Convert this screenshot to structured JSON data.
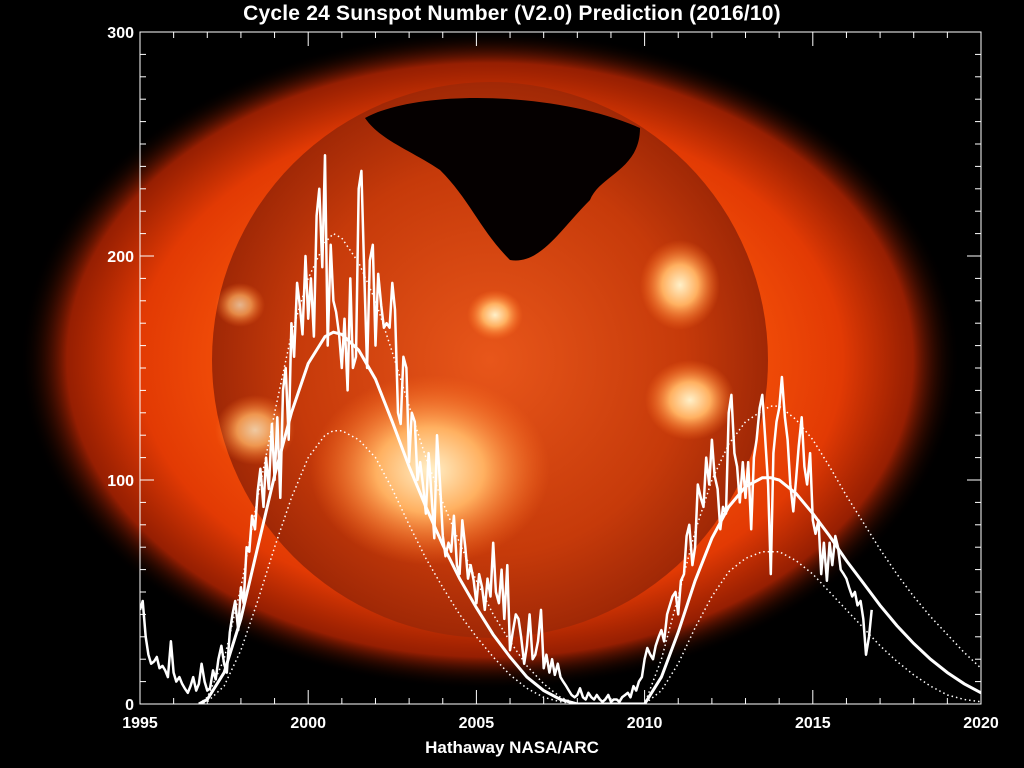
{
  "chart_data": {
    "type": "line",
    "title": "Cycle 24 Sunspot Number (V2.0) Prediction (2016/10)",
    "credit": "Hathaway  NASA/ARC",
    "background_image": "sun-x-ray-corona",
    "xlim": [
      1995,
      2020
    ],
    "ylim": [
      0,
      300
    ],
    "x_ticks": [
      1995,
      2000,
      2005,
      2010,
      2015,
      2020
    ],
    "y_ticks": [
      0,
      100,
      200,
      300
    ],
    "grid": false,
    "line_color": "#ffffff",
    "monthly": {
      "x": [
        1995.0,
        1995.08,
        1995.17,
        1995.25,
        1995.33,
        1995.42,
        1995.5,
        1995.58,
        1995.67,
        1995.75,
        1995.83,
        1995.92,
        1996.0,
        1996.08,
        1996.17,
        1996.25,
        1996.33,
        1996.42,
        1996.5,
        1996.58,
        1996.67,
        1996.75,
        1996.83,
        1996.92,
        1997.0,
        1997.08,
        1997.17,
        1997.25,
        1997.33,
        1997.42,
        1997.5,
        1997.58,
        1997.67,
        1997.75,
        1997.83,
        1997.92,
        1998.0,
        1998.08,
        1998.17,
        1998.25,
        1998.33,
        1998.42,
        1998.5,
        1998.58,
        1998.67,
        1998.75,
        1998.83,
        1998.92,
        1999.0,
        1999.08,
        1999.17,
        1999.25,
        1999.33,
        1999.42,
        1999.5,
        1999.58,
        1999.67,
        1999.75,
        1999.83,
        1999.92,
        2000.0,
        2000.08,
        2000.17,
        2000.25,
        2000.33,
        2000.42,
        2000.5,
        2000.58,
        2000.67,
        2000.75,
        2000.83,
        2000.92,
        2001.0,
        2001.08,
        2001.17,
        2001.25,
        2001.33,
        2001.42,
        2001.5,
        2001.58,
        2001.67,
        2001.75,
        2001.83,
        2001.92,
        2002.0,
        2002.08,
        2002.17,
        2002.25,
        2002.33,
        2002.42,
        2002.5,
        2002.58,
        2002.67,
        2002.75,
        2002.83,
        2002.92,
        2003.0,
        2003.08,
        2003.17,
        2003.25,
        2003.33,
        2003.42,
        2003.5,
        2003.58,
        2003.67,
        2003.75,
        2003.83,
        2003.92,
        2004.0,
        2004.08,
        2004.17,
        2004.25,
        2004.33,
        2004.42,
        2004.5,
        2004.58,
        2004.67,
        2004.75,
        2004.83,
        2004.92,
        2005.0,
        2005.08,
        2005.17,
        2005.25,
        2005.33,
        2005.42,
        2005.5,
        2005.58,
        2005.67,
        2005.75,
        2005.83,
        2005.92,
        2006.0,
        2006.08,
        2006.17,
        2006.25,
        2006.33,
        2006.42,
        2006.5,
        2006.58,
        2006.67,
        2006.75,
        2006.83,
        2006.92,
        2007.0,
        2007.08,
        2007.17,
        2007.25,
        2007.33,
        2007.42,
        2007.5,
        2007.58,
        2007.67,
        2007.75,
        2007.83,
        2007.92,
        2008.0,
        2008.08,
        2008.17,
        2008.25,
        2008.33,
        2008.42,
        2008.5,
        2008.58,
        2008.67,
        2008.75,
        2008.83,
        2008.92,
        2009.0,
        2009.08,
        2009.17,
        2009.25,
        2009.33,
        2009.42,
        2009.5,
        2009.58,
        2009.67,
        2009.75,
        2009.83,
        2009.92,
        2010.0,
        2010.08,
        2010.17,
        2010.25,
        2010.33,
        2010.42,
        2010.5,
        2010.58,
        2010.67,
        2010.75,
        2010.83,
        2010.92,
        2011.0,
        2011.08,
        2011.17,
        2011.25,
        2011.33,
        2011.42,
        2011.5,
        2011.58,
        2011.67,
        2011.75,
        2011.83,
        2011.92,
        2012.0,
        2012.08,
        2012.17,
        2012.25,
        2012.33,
        2012.42,
        2012.5,
        2012.58,
        2012.67,
        2012.75,
        2012.83,
        2012.92,
        2013.0,
        2013.08,
        2013.17,
        2013.25,
        2013.33,
        2013.42,
        2013.5,
        2013.58,
        2013.67,
        2013.75,
        2013.83,
        2013.92,
        2014.0,
        2014.08,
        2014.17,
        2014.25,
        2014.33,
        2014.42,
        2014.5,
        2014.58,
        2014.67,
        2014.75,
        2014.83,
        2014.92,
        2015.0,
        2015.08,
        2015.17,
        2015.25,
        2015.33,
        2015.42,
        2015.5,
        2015.58,
        2015.67,
        2015.75,
        2015.83,
        2015.92,
        2016.0,
        2016.08,
        2016.17,
        2016.25,
        2016.33,
        2016.42,
        2016.5,
        2016.58,
        2016.67,
        2016.75
      ],
      "y": [
        42,
        46,
        30,
        22,
        18,
        19,
        21,
        16,
        17,
        15,
        12,
        28,
        14,
        10,
        12,
        9,
        7,
        5,
        8,
        12,
        6,
        9,
        18,
        10,
        6,
        7,
        15,
        11,
        20,
        26,
        18,
        14,
        32,
        40,
        46,
        33,
        52,
        45,
        70,
        68,
        84,
        78,
        95,
        105,
        88,
        110,
        96,
        125,
        100,
        128,
        92,
        140,
        150,
        118,
        170,
        155,
        188,
        178,
        165,
        200,
        172,
        190,
        164,
        218,
        230,
        195,
        245,
        160,
        205,
        180,
        175,
        165,
        150,
        172,
        140,
        190,
        150,
        155,
        230,
        238,
        190,
        150,
        198,
        205,
        160,
        192,
        178,
        168,
        170,
        168,
        188,
        176,
        130,
        125,
        155,
        150,
        108,
        130,
        126,
        100,
        108,
        97,
        85,
        112,
        92,
        74,
        120,
        98,
        75,
        66,
        72,
        68,
        84,
        62,
        58,
        82,
        70,
        56,
        62,
        55,
        45,
        58,
        52,
        42,
        56,
        48,
        72,
        50,
        45,
        60,
        38,
        62,
        24,
        32,
        40,
        38,
        30,
        18,
        26,
        40,
        20,
        22,
        28,
        42,
        16,
        22,
        14,
        20,
        13,
        18,
        12,
        10,
        8,
        6,
        4,
        3,
        4,
        7,
        3,
        2,
        5,
        3,
        2,
        4,
        2,
        1,
        2,
        4,
        1,
        2,
        2,
        1,
        3,
        4,
        5,
        3,
        8,
        6,
        10,
        12,
        20,
        25,
        22,
        20,
        26,
        30,
        33,
        28,
        40,
        44,
        48,
        50,
        40,
        55,
        58,
        75,
        80,
        62,
        70,
        98,
        92,
        88,
        110,
        98,
        118,
        102,
        96,
        78,
        88,
        85,
        130,
        138,
        112,
        106,
        90,
        108,
        92,
        108,
        78,
        110,
        118,
        132,
        138,
        120,
        98,
        58,
        112,
        126,
        132,
        146,
        128,
        118,
        98,
        86,
        100,
        115,
        128,
        106,
        98,
        112,
        82,
        76,
        82,
        58,
        72,
        55,
        72,
        62,
        75,
        70,
        60,
        58,
        56,
        52,
        48,
        50,
        44,
        46,
        38,
        22,
        30,
        42
      ]
    },
    "prediction": {
      "x": [
        1996.75,
        1997.0,
        1997.5,
        1998.0,
        1998.5,
        1999.0,
        1999.5,
        2000.0,
        2000.5,
        2000.75,
        2001.0,
        2001.5,
        2002.0,
        2002.5,
        2003.0,
        2003.5,
        2004.0,
        2004.5,
        2005.0,
        2005.5,
        2006.0,
        2006.5,
        2007.0,
        2007.5,
        2008.0,
        2008.5,
        2009.0,
        2009.5,
        2010.0,
        2010.5,
        2011.0,
        2011.5,
        2012.0,
        2012.5,
        2013.0,
        2013.5,
        2013.75,
        2014.0,
        2014.5,
        2015.0,
        2015.5,
        2016.0,
        2016.5,
        2017.0,
        2017.5,
        2018.0,
        2018.5,
        2019.0,
        2019.5,
        2020.0
      ],
      "predicted": [
        0,
        2,
        14,
        38,
        70,
        102,
        130,
        152,
        164,
        166,
        165,
        158,
        145,
        126,
        106,
        88,
        71,
        56,
        43,
        31,
        21,
        12,
        6,
        2,
        0,
        0,
        0,
        0,
        0,
        12,
        32,
        55,
        74,
        88,
        97,
        101,
        101,
        100,
        94,
        85,
        75,
        64,
        54,
        44,
        35,
        27,
        20,
        14,
        9,
        5
      ],
      "upper": [
        0,
        3,
        20,
        52,
        92,
        130,
        165,
        190,
        206,
        210,
        208,
        197,
        180,
        157,
        133,
        110,
        90,
        72,
        55,
        40,
        28,
        17,
        9,
        3,
        0,
        0,
        0,
        0,
        0,
        20,
        48,
        77,
        100,
        116,
        126,
        131,
        133,
        133,
        127,
        118,
        106,
        93,
        81,
        69,
        58,
        48,
        39,
        31,
        23,
        16
      ],
      "lower": [
        0,
        1,
        8,
        24,
        46,
        70,
        92,
        110,
        120,
        122,
        122,
        118,
        110,
        96,
        80,
        65,
        52,
        40,
        30,
        21,
        13,
        7,
        3,
        1,
        0,
        0,
        0,
        0,
        0,
        6,
        18,
        34,
        48,
        59,
        65,
        68,
        68,
        68,
        64,
        58,
        50,
        42,
        34,
        26,
        19,
        13,
        8,
        4,
        2,
        1
      ]
    }
  }
}
